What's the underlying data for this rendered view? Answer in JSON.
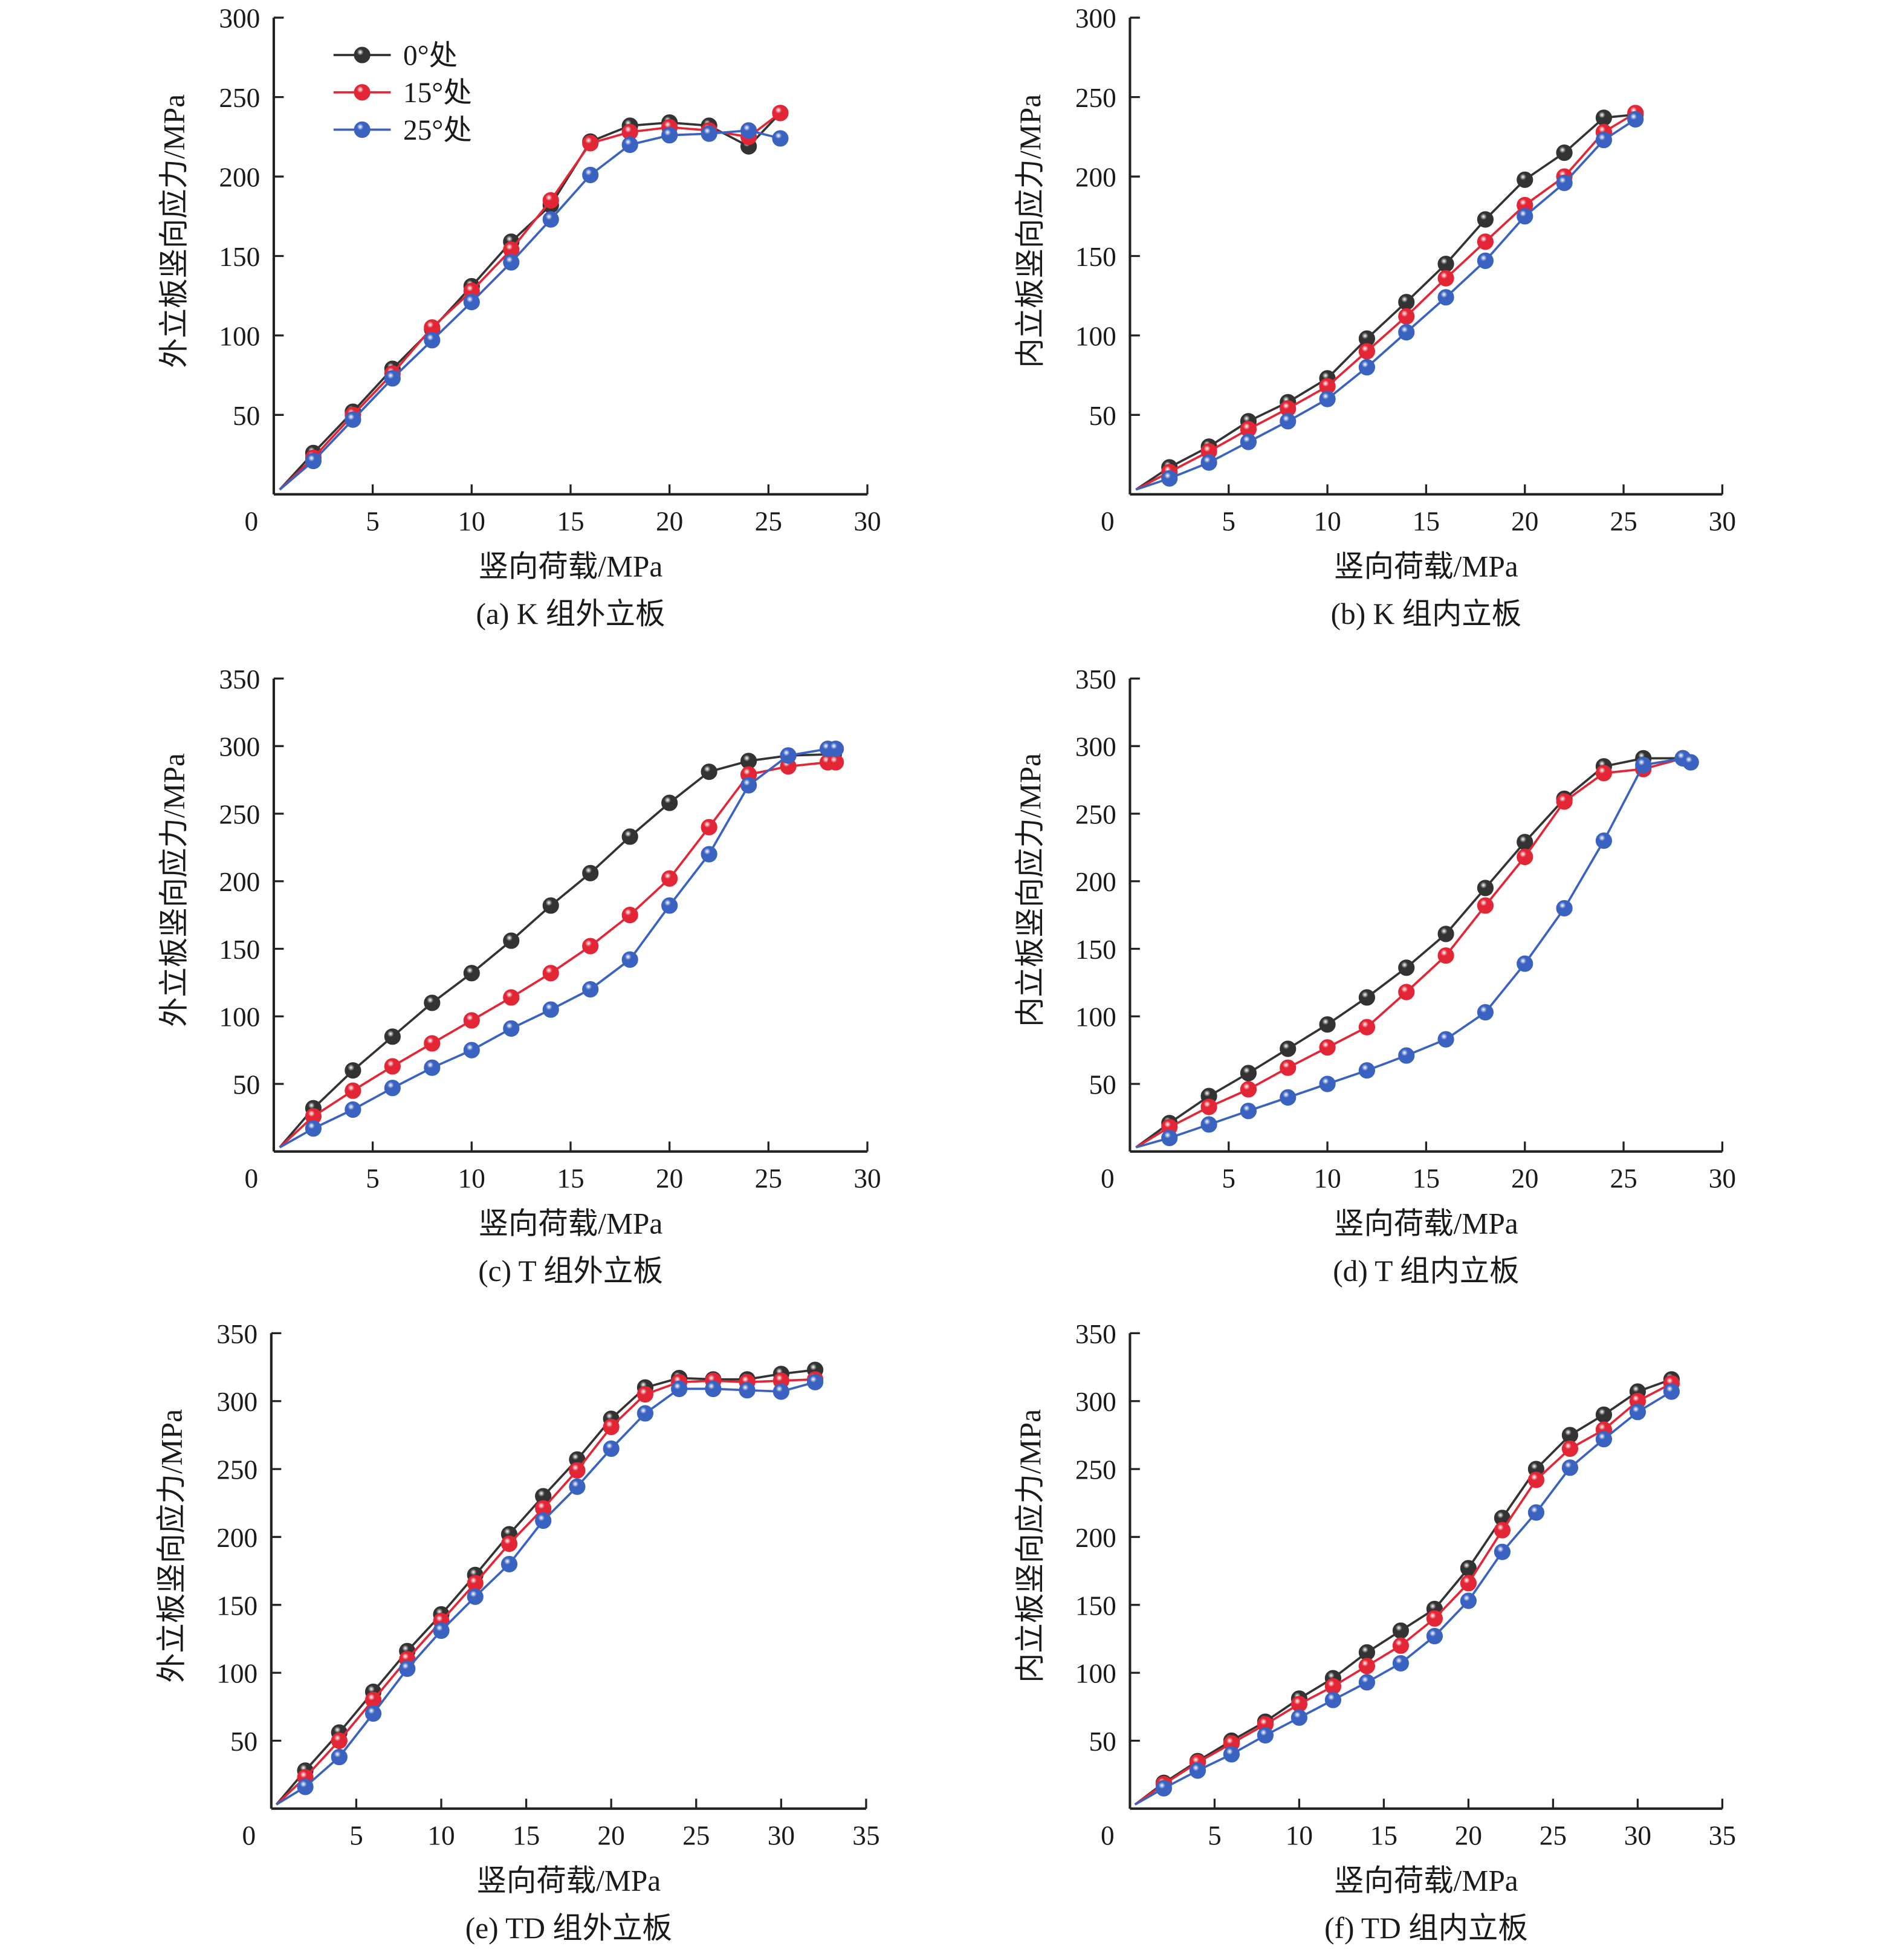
{
  "legend": {
    "entries": [
      {
        "label": "0°处",
        "color": "#333333"
      },
      {
        "label": "15°处",
        "color": "#e32636"
      },
      {
        "label": "25°处",
        "color": "#3a62c0"
      }
    ]
  },
  "chart_data": [
    {
      "type": "line",
      "caption": "(a) K 组外立板",
      "xlabel": "竖向荷载/MPa",
      "ylabel": "外立板竖向应力/MPa",
      "xlim": [
        0,
        30
      ],
      "ylim": [
        0,
        300
      ],
      "xticks": [
        0,
        5,
        10,
        15,
        20,
        25,
        30
      ],
      "yticks": [
        50,
        100,
        150,
        200,
        250,
        300
      ],
      "grid": false,
      "legend_position": "top-left",
      "series": [
        {
          "name": "0°处",
          "color": "#333333",
          "x": [
            0.3,
            2,
            4,
            6,
            8,
            10,
            12,
            14,
            16,
            18,
            20,
            22,
            24,
            25.6
          ],
          "y": [
            3,
            26,
            52,
            79,
            104,
            131,
            159,
            182,
            222,
            232,
            234,
            232,
            219,
            240
          ]
        },
        {
          "name": "15°处",
          "color": "#e32636",
          "x": [
            0.3,
            2,
            4,
            6,
            8,
            10,
            12,
            14,
            16,
            18,
            20,
            22,
            24,
            25.6
          ],
          "y": [
            3,
            23,
            50,
            76,
            105,
            128,
            154,
            185,
            221,
            228,
            231,
            229,
            225,
            240
          ]
        },
        {
          "name": "25°处",
          "color": "#3a62c0",
          "x": [
            0.3,
            2,
            4,
            6,
            8,
            10,
            12,
            14,
            16,
            18,
            20,
            22,
            24,
            25.6
          ],
          "y": [
            3,
            21,
            47,
            73,
            97,
            121,
            146,
            173,
            201,
            220,
            226,
            227,
            229,
            224
          ]
        }
      ]
    },
    {
      "type": "line",
      "caption": "(b) K 组内立板",
      "xlabel": "竖向荷载/MPa",
      "ylabel": "内立板竖向应力/MPa",
      "xlim": [
        0,
        30
      ],
      "ylim": [
        0,
        300
      ],
      "xticks": [
        0,
        5,
        10,
        15,
        20,
        25,
        30
      ],
      "yticks": [
        50,
        100,
        150,
        200,
        250,
        300
      ],
      "grid": false,
      "series": [
        {
          "color": "#333333",
          "x": [
            0.3,
            2,
            4,
            6,
            8,
            10,
            12,
            14,
            16,
            18,
            20,
            22,
            24,
            25.6
          ],
          "y": [
            3,
            17,
            30,
            46,
            58,
            73,
            98,
            121,
            145,
            173,
            198,
            215,
            237,
            239
          ]
        },
        {
          "color": "#e32636",
          "x": [
            0.3,
            2,
            4,
            6,
            8,
            10,
            12,
            14,
            16,
            18,
            20,
            22,
            24,
            25.6
          ],
          "y": [
            3,
            14,
            27,
            41,
            54,
            68,
            90,
            112,
            136,
            159,
            182,
            200,
            228,
            240
          ]
        },
        {
          "color": "#3a62c0",
          "x": [
            0.3,
            2,
            4,
            6,
            8,
            10,
            12,
            14,
            16,
            18,
            20,
            22,
            24,
            25.6
          ],
          "y": [
            3,
            10,
            20,
            33,
            46,
            60,
            80,
            102,
            124,
            147,
            175,
            196,
            223,
            236
          ]
        }
      ]
    },
    {
      "type": "line",
      "caption": "(c) T 组外立板",
      "xlabel": "竖向荷载/MPa",
      "ylabel": "外立板竖向应力/MPa",
      "xlim": [
        0,
        30
      ],
      "ylim": [
        0,
        350
      ],
      "xticks": [
        0,
        5,
        10,
        15,
        20,
        25,
        30
      ],
      "yticks": [
        50,
        100,
        150,
        200,
        250,
        300,
        350
      ],
      "grid": false,
      "series": [
        {
          "color": "#333333",
          "x": [
            0.3,
            2,
            4,
            6,
            8,
            10,
            12,
            14,
            16,
            18,
            20,
            22,
            24,
            26,
            28.3
          ],
          "y": [
            3,
            32,
            60,
            85,
            110,
            132,
            156,
            182,
            206,
            233,
            258,
            281,
            289,
            293,
            294
          ]
        },
        {
          "color": "#e32636",
          "x": [
            0.3,
            2,
            4,
            6,
            8,
            10,
            12,
            14,
            16,
            18,
            20,
            22,
            24,
            26,
            28,
            28.4
          ],
          "y": [
            3,
            26,
            45,
            63,
            80,
            97,
            114,
            132,
            152,
            175,
            202,
            240,
            279,
            285,
            288,
            288
          ]
        },
        {
          "color": "#3a62c0",
          "x": [
            0.3,
            2,
            4,
            6,
            8,
            10,
            12,
            14,
            16,
            18,
            20,
            22,
            24,
            26,
            28,
            28.4
          ],
          "y": [
            3,
            17,
            31,
            47,
            62,
            75,
            91,
            105,
            120,
            142,
            182,
            220,
            271,
            293,
            298,
            298
          ]
        }
      ]
    },
    {
      "type": "line",
      "caption": "(d) T 组内立板",
      "xlabel": "竖向荷载/MPa",
      "ylabel": "内立板竖向应力/MPa",
      "xlim": [
        0,
        30
      ],
      "ylim": [
        0,
        350
      ],
      "xticks": [
        0,
        5,
        10,
        15,
        20,
        25,
        30
      ],
      "yticks": [
        50,
        100,
        150,
        200,
        250,
        300,
        350
      ],
      "grid": false,
      "series": [
        {
          "color": "#333333",
          "x": [
            0.3,
            2,
            4,
            6,
            8,
            10,
            12,
            14,
            16,
            18,
            20,
            22,
            24,
            26,
            28
          ],
          "y": [
            3,
            21,
            41,
            58,
            76,
            94,
            114,
            136,
            161,
            195,
            229,
            261,
            285,
            291,
            291
          ]
        },
        {
          "color": "#e32636",
          "x": [
            0.3,
            2,
            4,
            6,
            8,
            10,
            12,
            14,
            16,
            18,
            20,
            22,
            24,
            26,
            28,
            28.4
          ],
          "y": [
            3,
            18,
            33,
            46,
            62,
            77,
            92,
            118,
            145,
            182,
            218,
            259,
            280,
            283,
            291,
            288
          ]
        },
        {
          "color": "#3a62c0",
          "x": [
            0.3,
            2,
            4,
            6,
            8,
            10,
            12,
            14,
            16,
            18,
            20,
            22,
            24,
            26,
            28,
            28.4
          ],
          "y": [
            3,
            10,
            20,
            30,
            40,
            50,
            60,
            71,
            83,
            103,
            139,
            180,
            230,
            286,
            291,
            288
          ]
        }
      ]
    },
    {
      "type": "line",
      "caption": "(e) TD 组外立板",
      "xlabel": "竖向荷载/MPa",
      "ylabel": "外立板竖向应力/MPa",
      "xlim": [
        0,
        35
      ],
      "ylim": [
        0,
        350
      ],
      "xticks": [
        0,
        5,
        10,
        15,
        20,
        25,
        30,
        35
      ],
      "yticks": [
        50,
        100,
        150,
        200,
        250,
        300,
        350
      ],
      "grid": false,
      "series": [
        {
          "color": "#333333",
          "x": [
            0.3,
            2,
            4,
            6,
            8,
            10,
            12,
            14,
            16,
            18,
            20,
            22,
            24,
            26,
            28,
            30,
            32
          ],
          "y": [
            3,
            28,
            56,
            86,
            116,
            143,
            172,
            202,
            230,
            257,
            287,
            310,
            317,
            316,
            316,
            320,
            323
          ]
        },
        {
          "color": "#e32636",
          "x": [
            0.3,
            2,
            4,
            6,
            8,
            10,
            12,
            14,
            16,
            18,
            20,
            22,
            24,
            26,
            28,
            30,
            32
          ],
          "y": [
            3,
            23,
            50,
            80,
            110,
            138,
            166,
            195,
            221,
            249,
            281,
            305,
            314,
            315,
            314,
            315,
            316
          ]
        },
        {
          "color": "#3a62c0",
          "x": [
            0.3,
            2,
            4,
            6,
            8,
            10,
            12,
            14,
            16,
            18,
            20,
            22,
            24,
            26,
            28,
            30,
            32
          ],
          "y": [
            3,
            16,
            38,
            70,
            103,
            131,
            156,
            180,
            212,
            237,
            265,
            291,
            309,
            309,
            308,
            307,
            314
          ]
        }
      ]
    },
    {
      "type": "line",
      "caption": "(f) TD 组内立板",
      "xlabel": "竖向荷载/MPa",
      "ylabel": "内立板竖向应力/MPa",
      "xlim": [
        0,
        35
      ],
      "ylim": [
        0,
        350
      ],
      "xticks": [
        0,
        5,
        10,
        15,
        20,
        25,
        30,
        35
      ],
      "yticks": [
        50,
        100,
        150,
        200,
        250,
        300,
        350
      ],
      "grid": false,
      "series": [
        {
          "color": "#333333",
          "x": [
            0.3,
            2,
            4,
            6,
            8,
            10,
            12,
            14,
            16,
            18,
            20,
            22,
            24,
            26,
            28,
            30,
            32
          ],
          "y": [
            3,
            19,
            35,
            50,
            64,
            81,
            96,
            115,
            131,
            147,
            177,
            214,
            250,
            275,
            290,
            307,
            316
          ]
        },
        {
          "color": "#e32636",
          "x": [
            0.3,
            2,
            4,
            6,
            8,
            10,
            12,
            14,
            16,
            18,
            20,
            22,
            24,
            26,
            28,
            30,
            32
          ],
          "y": [
            3,
            18,
            34,
            48,
            62,
            77,
            90,
            105,
            120,
            140,
            166,
            205,
            242,
            265,
            279,
            300,
            313
          ]
        },
        {
          "color": "#3a62c0",
          "x": [
            0.3,
            2,
            4,
            6,
            8,
            10,
            12,
            14,
            16,
            18,
            20,
            22,
            24,
            26,
            28,
            30,
            32
          ],
          "y": [
            3,
            15,
            28,
            40,
            54,
            67,
            80,
            93,
            107,
            127,
            153,
            189,
            218,
            251,
            272,
            292,
            307
          ]
        }
      ]
    }
  ]
}
